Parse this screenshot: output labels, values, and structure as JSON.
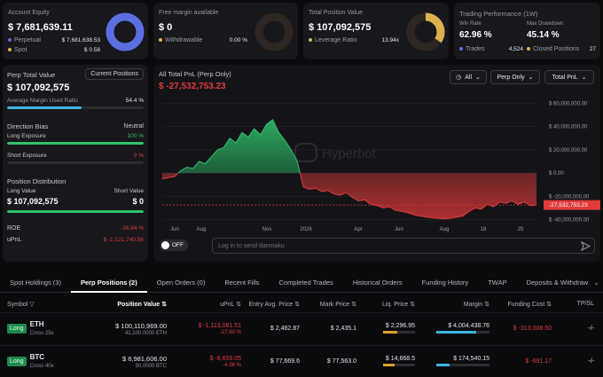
{
  "summary": {
    "equity": {
      "label": "Account Equity",
      "value": "$ 7,681,639.11",
      "perp_label": "Perpetual",
      "perp_value": "$ 7,681,638.53",
      "spot_label": "Spot",
      "spot_value": "$ 0.58"
    },
    "margin": {
      "label": "Free margin available",
      "value": "$ 0",
      "withdrawable_label": "Withdrawable",
      "withdrawable_value": "0.00 %"
    },
    "position": {
      "label": "Total Position Value",
      "value": "$ 107,092,575",
      "leverage_label": "Leverage Ratio",
      "leverage_value": "13.94x"
    },
    "performance": {
      "label": "Trading Performance (1W)",
      "win_label": "Win Rate",
      "win_value": "62.96 %",
      "dd_label": "Max Drawdown",
      "dd_value": "45.14 %",
      "trades_label": "Trades",
      "trades_value": "4,524",
      "closed_label": "Closed Positions",
      "closed_value": "27"
    }
  },
  "left": {
    "title": "Perp Total Value",
    "current_btn": "Current Positions",
    "value": "$ 107,092,575",
    "avg_margin_label": "Average Margin Used Ratio",
    "avg_margin_value": "54.4 %",
    "avg_margin_fraction": 0.544,
    "direction_label": "Direction Bias",
    "direction_value": "Neutral",
    "long_label": "Long Exposure",
    "long_value": "100 %",
    "short_label": "Short Exposure",
    "short_value": "0 %",
    "dist_label": "Position Distribution",
    "long_val_label": "Long Value",
    "short_val_label": "Short Value",
    "long_val": "$ 107,092,575",
    "short_val": "$ 0",
    "roe_label": "ROE",
    "roe_value": "-26.84 %",
    "upnl_label": "uPnL",
    "upnl_value": "$ -1,121,740.56"
  },
  "chart_panel": {
    "title": "All Total PnL (Perp Only)",
    "value": "$ -27,532,753.23",
    "filter_all": "All",
    "filter_perp": "Perp Only",
    "filter_pnl": "Total PnL",
    "watermark": "Hyperbot",
    "current_tag": "-27,532,753.23",
    "danmaku_toggle": "OFF",
    "danmaku_placeholder": "Log in to send danmaku"
  },
  "chart_data": {
    "type": "area",
    "x_ticks": [
      "Jun",
      "Aug",
      "Nov",
      "2026",
      "Apr",
      "Jun",
      "Aug",
      "18",
      "25"
    ],
    "y_ticks": [
      "$ 60,000,000.00",
      "$ 40,000,000.00",
      "$ 20,000,000.00",
      "$ 0.00",
      "$ -20,000,000.00",
      "$ -40,000,000.00"
    ],
    "ylim": [
      -45000000,
      65000000
    ],
    "values": [
      -5000000,
      -4000000,
      -3000000,
      2000000,
      5000000,
      4000000,
      10000000,
      8000000,
      14000000,
      20000000,
      22000000,
      30000000,
      26000000,
      35000000,
      31000000,
      38000000,
      33000000,
      42000000,
      46000000,
      35000000,
      28000000,
      20000000,
      10000000,
      -12000000,
      -14000000,
      -13000000,
      -16000000,
      -15000000,
      -18000000,
      -19000000,
      -17000000,
      -21000000,
      -24000000,
      -23000000,
      -27000000,
      -28000000,
      -30000000,
      -29000000,
      -32000000,
      -33000000,
      -34000000,
      -36000000,
      -37000000,
      -38000000,
      -38500000,
      -39000000,
      -39500000,
      -39000000,
      -38000000,
      -37000000,
      -33000000,
      -30000000,
      -31000000,
      -27000000,
      -29000000,
      -25000000,
      -26000000,
      -24000000,
      -27000000,
      -25000000,
      -28000000,
      -27500000
    ],
    "grid": true
  },
  "tabs": [
    "Spot Holdings (3)",
    "Perp Positions (2)",
    "Open Orders (0)",
    "Recent Fills",
    "Completed Trades",
    "Historical Orders",
    "Funding History",
    "TWAP",
    "Deposits & Withdraw"
  ],
  "table": {
    "headers": {
      "symbol": "Symbol",
      "value": "Position Value",
      "upnl": "uPnL",
      "entry": "Entry Avg. Price",
      "mark": "Mark Price",
      "liq": "Liq. Price",
      "margin": "Margin",
      "funding": "Funding Cost",
      "tpsl": "TP/SL"
    },
    "rows": [
      {
        "side": "Long",
        "symbol": "ETH",
        "lev": "Cross 25x",
        "value": "$ 100,110,969.00",
        "qty": "41,100.0000 ETH",
        "upnl": "$ -1,113,081.51",
        "upnl_pct": "-27.80 %",
        "entry": "$ 2,462.87",
        "mark": "$ 2,435.1",
        "liq": "$ 2,296.95",
        "liq_fraction": 0.45,
        "margin": "$ 4,004,438.76",
        "margin_fraction": 0.75,
        "funding": "$ -313,008.50",
        "tpsl": "-/-"
      },
      {
        "side": "Long",
        "symbol": "BTC",
        "lev": "Cross 40x",
        "value": "$ 6,981,606.00",
        "qty": "90.0000 BTC",
        "upnl": "$ -8,659.05",
        "upnl_pct": "-4.96 %",
        "entry": "$ 77,669.6",
        "mark": "$ 77,563.0",
        "liq": "$ 14,668.5",
        "liq_fraction": 0.35,
        "margin": "$ 174,540.15",
        "margin_fraction": 0.25,
        "funding": "$ -691.17",
        "tpsl": "-/-"
      }
    ]
  },
  "colors": {
    "accent_blue": "#5b6ee1",
    "gold": "#d9b24c",
    "green": "#2fc46b",
    "red": "#e03a3a"
  }
}
